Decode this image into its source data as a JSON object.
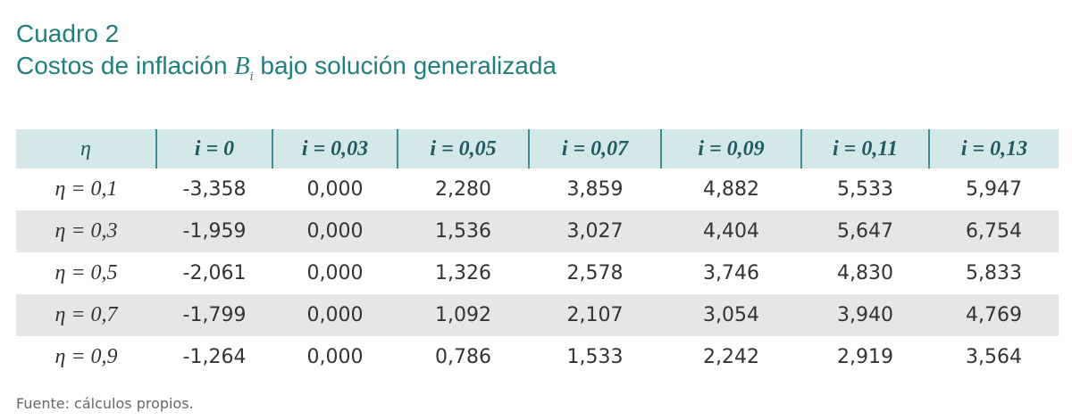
{
  "header": {
    "title": "Cuadro 2",
    "subtitle": {
      "before": "Costos de inflación ",
      "symbol": "B",
      "subscript": "i",
      "after": " bajo solución generalizada"
    }
  },
  "table": {
    "columns": [
      "η",
      "i = 0",
      "i = 0,03",
      "i = 0,05",
      "i = 0,07",
      "i = 0,09",
      "i = 0,11",
      "i = 0,13"
    ],
    "rows": [
      [
        "η = 0,1",
        "-3,358",
        "0,000",
        "2,280",
        "3,859",
        "4,882",
        "5,533",
        "5,947"
      ],
      [
        "η = 0,3",
        "-1,959",
        "0,000",
        "1,536",
        "3,027",
        "4,404",
        "5,647",
        "6,754"
      ],
      [
        "η = 0,5",
        "-2,061",
        "0,000",
        "1,326",
        "2,578",
        "3,746",
        "4,830",
        "5,833"
      ],
      [
        "η = 0,7",
        "-1,799",
        "0,000",
        "1,092",
        "2,107",
        "3,054",
        "3,940",
        "4,769"
      ],
      [
        "η = 0,9",
        "-1,264",
        "0,000",
        "0,786",
        "1,533",
        "2,242",
        "2,919",
        "3,564"
      ]
    ]
  },
  "footer": {
    "source": "Fuente: cálculos propios."
  }
}
